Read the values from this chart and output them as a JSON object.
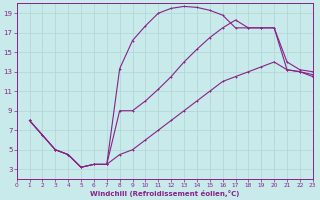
{
  "background_color": "#c8eaea",
  "grid_color": "#b0d4d4",
  "line_color": "#882288",
  "xlabel": "Windchill (Refroidissement éolien,°C)",
  "xlim": [
    0,
    23
  ],
  "ylim": [
    2,
    20
  ],
  "xticks": [
    0,
    1,
    2,
    3,
    4,
    5,
    6,
    7,
    8,
    9,
    10,
    11,
    12,
    13,
    14,
    15,
    16,
    17,
    18,
    19,
    20,
    21,
    22,
    23
  ],
  "yticks": [
    3,
    5,
    7,
    9,
    11,
    13,
    15,
    17,
    19
  ],
  "curve_top_x": [
    1,
    2,
    3,
    4,
    5,
    6,
    7,
    8,
    9,
    10,
    11,
    12,
    13,
    14,
    15,
    16,
    17,
    18,
    19,
    20,
    21,
    22,
    23
  ],
  "curve_top_y": [
    8.0,
    6.5,
    5.0,
    4.5,
    3.2,
    3.5,
    3.5,
    13.3,
    16.2,
    17.7,
    19.0,
    19.5,
    19.7,
    19.6,
    19.3,
    18.8,
    17.5,
    17.5,
    17.5,
    17.5,
    13.2,
    13.0,
    12.7
  ],
  "curve_mid_x": [
    1,
    2,
    3,
    4,
    5,
    6,
    7,
    8,
    9,
    10,
    11,
    12,
    13,
    14,
    15,
    16,
    17,
    18,
    19,
    20,
    21,
    22,
    23
  ],
  "curve_mid_y": [
    8.0,
    6.5,
    5.0,
    4.5,
    3.2,
    3.5,
    3.5,
    9.0,
    9.0,
    10.0,
    11.2,
    12.5,
    14.0,
    15.3,
    16.5,
    17.5,
    18.3,
    17.5,
    17.5,
    17.5,
    14.0,
    13.2,
    13.0
  ],
  "curve_bot_x": [
    1,
    2,
    3,
    4,
    5,
    6,
    7,
    8,
    9,
    10,
    11,
    12,
    13,
    14,
    15,
    16,
    17,
    18,
    19,
    20,
    21,
    22,
    23
  ],
  "curve_bot_y": [
    8.0,
    6.5,
    5.0,
    4.5,
    3.2,
    3.5,
    3.5,
    4.5,
    5.0,
    6.0,
    7.0,
    8.0,
    9.0,
    10.0,
    11.0,
    12.0,
    12.5,
    13.0,
    13.5,
    14.0,
    13.2,
    13.0,
    12.5
  ]
}
